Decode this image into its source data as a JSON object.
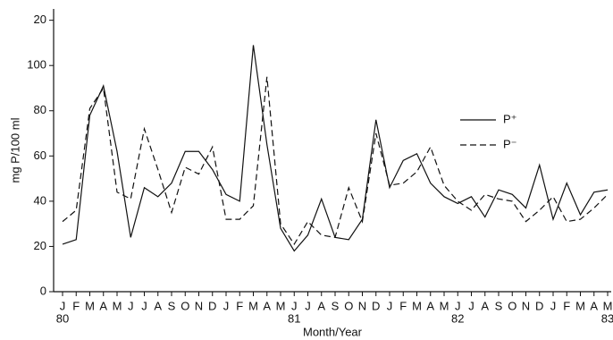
{
  "chart_data": {
    "type": "line",
    "y_label": "mg P/100 ml",
    "x_label": "Month/Year",
    "categories": [
      "J",
      "F",
      "M",
      "A",
      "M",
      "J",
      "J",
      "A",
      "S",
      "O",
      "N",
      "D",
      "J",
      "F",
      "M",
      "A",
      "M",
      "J",
      "J",
      "A",
      "S",
      "O",
      "N",
      "D",
      "J",
      "F",
      "M",
      "A",
      "M",
      "J",
      "J",
      "A",
      "S",
      "O",
      "N",
      "D",
      "J",
      "F",
      "M",
      "A",
      "M"
    ],
    "year_labels": [
      "80",
      null,
      null,
      null,
      null,
      null,
      null,
      null,
      null,
      null,
      null,
      null,
      null,
      null,
      null,
      null,
      null,
      "81",
      null,
      null,
      null,
      null,
      null,
      null,
      null,
      null,
      null,
      null,
      null,
      "82",
      null,
      null,
      null,
      null,
      null,
      null,
      null,
      null,
      null,
      null,
      "83"
    ],
    "series": [
      {
        "name": "P⁺",
        "color": "#111111",
        "linestyle": "solid",
        "values": [
          21,
          23,
          78,
          91,
          62,
          24,
          46,
          42,
          48,
          62,
          62,
          54,
          43,
          40,
          109,
          65,
          28,
          18,
          25,
          41,
          24,
          23,
          32,
          76,
          46,
          58,
          61,
          48,
          42,
          39,
          42,
          33,
          45,
          43,
          37,
          56,
          32,
          48,
          34,
          44,
          45
        ]
      },
      {
        "name": "P⁻",
        "color": "#111111",
        "linestyle": "dashed",
        "values": [
          31,
          36,
          81,
          90,
          44,
          41,
          72,
          54,
          35,
          55,
          52,
          64,
          32,
          32,
          38,
          95,
          30,
          21,
          31,
          25,
          24,
          46,
          31,
          70,
          47,
          48,
          53,
          64,
          47,
          40,
          36,
          43,
          41,
          40,
          31,
          36,
          42,
          31,
          32,
          37,
          43
        ]
      }
    ],
    "ylim": [
      0,
      125
    ],
    "yticks": [
      0,
      20,
      40,
      60,
      80,
      100,
      {
        "value": 120,
        "label": "20"
      }
    ],
    "grid": false,
    "legend": "right"
  }
}
